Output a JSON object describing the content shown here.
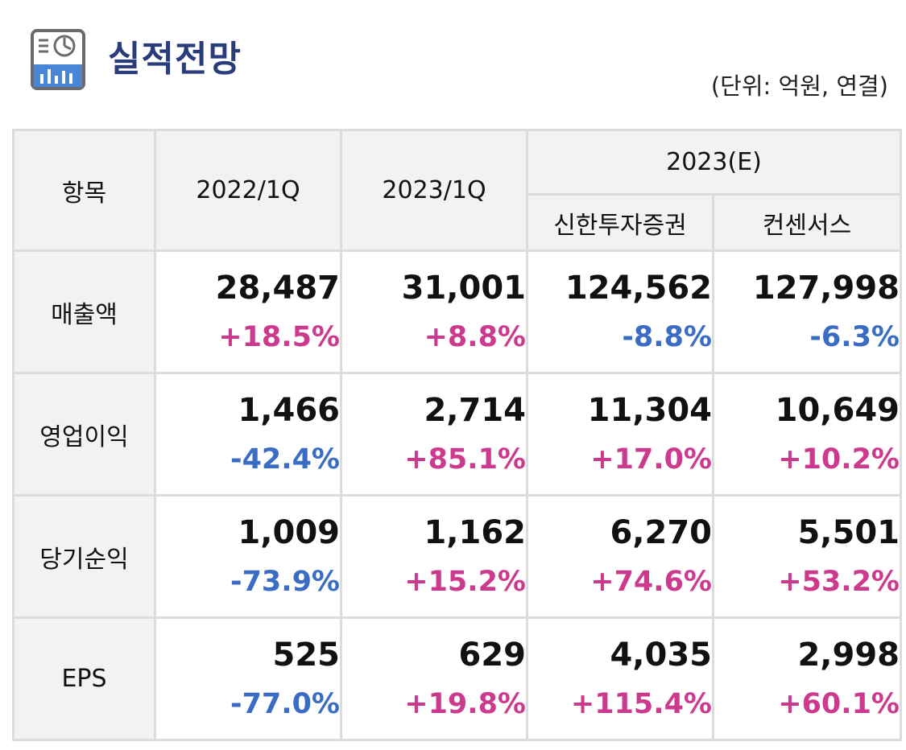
{
  "header": {
    "title": "실적전망",
    "unit": "(단위: 억원, 연결)"
  },
  "colors": {
    "title": "#2b3c7a",
    "positive": "#cc3a8e",
    "negative": "#3a6cc4",
    "header_bg": "#f2f2f2",
    "border": "#dcdcdc"
  },
  "table": {
    "headers": {
      "item": "항목",
      "col1": "2022/1Q",
      "col2": "2023/1Q",
      "group": "2023(E)",
      "col3": "신한투자증권",
      "col4": "컨센서스"
    },
    "rows": [
      {
        "label": "매출액",
        "cells": [
          {
            "value": "28,487",
            "change": "+18.5%",
            "dir": "pos"
          },
          {
            "value": "31,001",
            "change": "+8.8%",
            "dir": "pos"
          },
          {
            "value": "124,562",
            "change": "-8.8%",
            "dir": "neg"
          },
          {
            "value": "127,998",
            "change": "-6.3%",
            "dir": "neg"
          }
        ]
      },
      {
        "label": "영업이익",
        "cells": [
          {
            "value": "1,466",
            "change": "-42.4%",
            "dir": "neg"
          },
          {
            "value": "2,714",
            "change": "+85.1%",
            "dir": "pos"
          },
          {
            "value": "11,304",
            "change": "+17.0%",
            "dir": "pos"
          },
          {
            "value": "10,649",
            "change": "+10.2%",
            "dir": "pos"
          }
        ]
      },
      {
        "label": "당기순익",
        "cells": [
          {
            "value": "1,009",
            "change": "-73.9%",
            "dir": "neg"
          },
          {
            "value": "1,162",
            "change": "+15.2%",
            "dir": "pos"
          },
          {
            "value": "6,270",
            "change": "+74.6%",
            "dir": "pos"
          },
          {
            "value": "5,501",
            "change": "+53.2%",
            "dir": "pos"
          }
        ]
      },
      {
        "label": "EPS",
        "cells": [
          {
            "value": "525",
            "change": "-77.0%",
            "dir": "neg"
          },
          {
            "value": "629",
            "change": "+19.8%",
            "dir": "pos"
          },
          {
            "value": "4,035",
            "change": "+115.4%",
            "dir": "pos"
          },
          {
            "value": "2,998",
            "change": "+60.1%",
            "dir": "pos"
          }
        ]
      }
    ]
  }
}
